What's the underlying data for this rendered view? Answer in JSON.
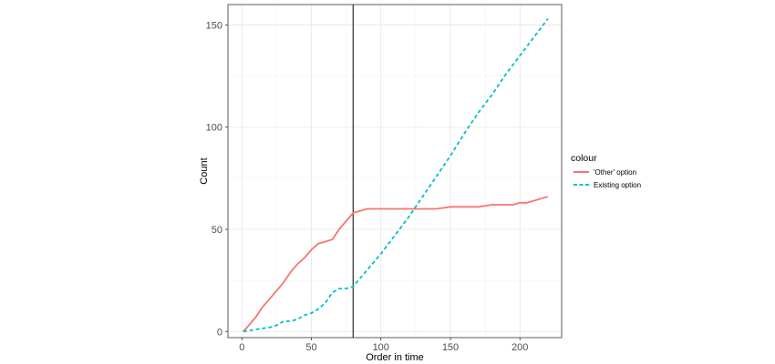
{
  "chart_data": {
    "type": "line",
    "xlabel": "Order in time",
    "ylabel": "Count",
    "xlim": [
      -10,
      230
    ],
    "ylim": [
      -3,
      160
    ],
    "x_ticks": [
      0,
      50,
      100,
      150,
      200
    ],
    "y_ticks": [
      0,
      50,
      100,
      150
    ],
    "x_tick_labels": [
      "0",
      "50",
      "100",
      "150",
      "200"
    ],
    "y_tick_labels": [
      "0",
      "50",
      "100",
      "150"
    ],
    "grid": true,
    "legend": {
      "title": "colour",
      "position": "right"
    },
    "vline": {
      "x": 80,
      "color": "#000000"
    },
    "series": [
      {
        "name": "'Other' option",
        "color": "#F8766D",
        "dash": "solid",
        "x": [
          1,
          5,
          10,
          15,
          20,
          25,
          30,
          35,
          40,
          45,
          50,
          55,
          60,
          65,
          70,
          75,
          80,
          85,
          90,
          100,
          120,
          140,
          150,
          160,
          170,
          180,
          190,
          195,
          200,
          205,
          210,
          215,
          220
        ],
        "y": [
          0,
          3,
          7,
          12,
          16,
          20,
          24,
          29,
          33,
          36,
          40,
          43,
          44,
          45,
          50,
          54,
          58,
          59,
          60,
          60,
          60,
          60,
          61,
          61,
          61,
          62,
          62,
          62,
          63,
          63,
          64,
          65,
          66
        ]
      },
      {
        "name": "Existing option",
        "color": "#00BFC4",
        "dash": "dashed",
        "x": [
          1,
          10,
          20,
          25,
          30,
          35,
          40,
          45,
          50,
          55,
          60,
          65,
          70,
          75,
          80,
          85,
          90,
          100,
          110,
          120,
          130,
          140,
          150,
          160,
          170,
          180,
          190,
          200,
          210,
          220
        ],
        "y": [
          0,
          1,
          2,
          3,
          5,
          5,
          6,
          8,
          9,
          11,
          14,
          19,
          21,
          21,
          22,
          26,
          30,
          38,
          47,
          56,
          66,
          76,
          86,
          97,
          107,
          116,
          126,
          135,
          144,
          153
        ]
      }
    ]
  }
}
